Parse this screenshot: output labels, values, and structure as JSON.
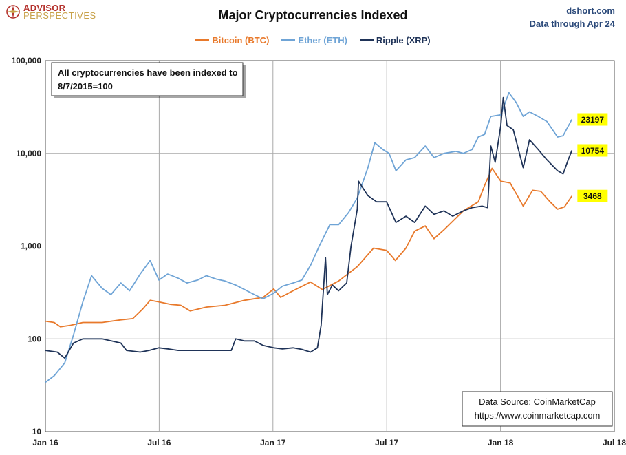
{
  "logo": {
    "line1": "ADVISOR",
    "line2": "PERSPECTIVES"
  },
  "header": {
    "site": "dshort.com",
    "data_through": "Data through Apr 24"
  },
  "colors": {
    "btc": "#e8792b",
    "eth": "#6fa4d6",
    "xrp": "#1f3358",
    "label_bg": "#ffff00",
    "grid": "#a9a9a9"
  },
  "chart_data": {
    "type": "line",
    "title": "Major Cryptocurrencies  Indexed",
    "yscale": "log",
    "ylim": [
      10,
      100000
    ],
    "y_ticks": [
      10,
      100,
      1000,
      10000,
      100000
    ],
    "y_tick_labels": [
      "10",
      "100",
      "1,000",
      "10,000",
      "100,000"
    ],
    "x_ticks": [
      "Jan 16",
      "Jul 16",
      "Jan 17",
      "Jul 17",
      "Jan 18",
      "Jul 18"
    ],
    "xlim": [
      "2016-01-01",
      "2018-07-01"
    ],
    "grid": true,
    "legend_position": "top-center",
    "annotation": "All cryptocurrencies have been indexed to 8/7/2015=100",
    "source_box": {
      "line1": "Data Source: CoinMarketCap",
      "line2": "https://www.coinmarketcap.com"
    },
    "series": [
      {
        "name": "Bitcoin (BTC)",
        "key": "btc",
        "end_label": "3468",
        "points": [
          [
            "2016-01-01",
            155
          ],
          [
            "2016-01-15",
            150
          ],
          [
            "2016-01-25",
            135
          ],
          [
            "2016-02-10",
            140
          ],
          [
            "2016-03-01",
            150
          ],
          [
            "2016-04-01",
            150
          ],
          [
            "2016-05-01",
            160
          ],
          [
            "2016-05-20",
            165
          ],
          [
            "2016-06-05",
            210
          ],
          [
            "2016-06-17",
            260
          ],
          [
            "2016-07-01",
            250
          ],
          [
            "2016-07-20",
            235
          ],
          [
            "2016-08-05",
            230
          ],
          [
            "2016-08-20",
            200
          ],
          [
            "2016-09-15",
            220
          ],
          [
            "2016-10-15",
            230
          ],
          [
            "2016-11-15",
            260
          ],
          [
            "2016-12-15",
            280
          ],
          [
            "2017-01-01",
            345
          ],
          [
            "2017-01-12",
            280
          ],
          [
            "2017-02-01",
            330
          ],
          [
            "2017-03-01",
            410
          ],
          [
            "2017-03-20",
            340
          ],
          [
            "2017-04-15",
            420
          ],
          [
            "2017-05-15",
            600
          ],
          [
            "2017-06-10",
            950
          ],
          [
            "2017-07-01",
            900
          ],
          [
            "2017-07-15",
            700
          ],
          [
            "2017-08-01",
            950
          ],
          [
            "2017-08-15",
            1450
          ],
          [
            "2017-09-01",
            1650
          ],
          [
            "2017-09-15",
            1200
          ],
          [
            "2017-10-01",
            1500
          ],
          [
            "2017-10-20",
            2000
          ],
          [
            "2017-11-01",
            2400
          ],
          [
            "2017-11-25",
            3000
          ],
          [
            "2017-12-05",
            4500
          ],
          [
            "2017-12-17",
            6900
          ],
          [
            "2017-12-31",
            5000
          ],
          [
            "2018-01-15",
            4800
          ],
          [
            "2018-02-05",
            2700
          ],
          [
            "2018-02-20",
            4000
          ],
          [
            "2018-03-05",
            3900
          ],
          [
            "2018-03-20",
            3000
          ],
          [
            "2018-04-01",
            2500
          ],
          [
            "2018-04-12",
            2650
          ],
          [
            "2018-04-24",
            3468
          ]
        ]
      },
      {
        "name": "Ether (ETH)",
        "key": "eth",
        "end_label": "23197",
        "points": [
          [
            "2016-01-01",
            34
          ],
          [
            "2016-01-15",
            40
          ],
          [
            "2016-02-01",
            55
          ],
          [
            "2016-02-15",
            110
          ],
          [
            "2016-03-01",
            250
          ],
          [
            "2016-03-15",
            480
          ],
          [
            "2016-04-01",
            350
          ],
          [
            "2016-04-15",
            300
          ],
          [
            "2016-05-01",
            400
          ],
          [
            "2016-05-15",
            330
          ],
          [
            "2016-06-01",
            500
          ],
          [
            "2016-06-17",
            700
          ],
          [
            "2016-07-01",
            430
          ],
          [
            "2016-07-15",
            500
          ],
          [
            "2016-08-01",
            450
          ],
          [
            "2016-08-15",
            400
          ],
          [
            "2016-09-01",
            430
          ],
          [
            "2016-09-15",
            480
          ],
          [
            "2016-10-01",
            440
          ],
          [
            "2016-10-15",
            420
          ],
          [
            "2016-11-01",
            380
          ],
          [
            "2016-11-15",
            340
          ],
          [
            "2016-12-01",
            300
          ],
          [
            "2016-12-15",
            270
          ],
          [
            "2017-01-01",
            310
          ],
          [
            "2017-01-15",
            370
          ],
          [
            "2017-02-01",
            400
          ],
          [
            "2017-02-15",
            430
          ],
          [
            "2017-03-01",
            620
          ],
          [
            "2017-03-15",
            1000
          ],
          [
            "2017-04-01",
            1700
          ],
          [
            "2017-04-15",
            1700
          ],
          [
            "2017-05-01",
            2300
          ],
          [
            "2017-05-15",
            3300
          ],
          [
            "2017-06-01",
            7000
          ],
          [
            "2017-06-12",
            13000
          ],
          [
            "2017-06-25",
            11000
          ],
          [
            "2017-07-05",
            10000
          ],
          [
            "2017-07-16",
            6500
          ],
          [
            "2017-08-01",
            8500
          ],
          [
            "2017-08-15",
            9000
          ],
          [
            "2017-09-01",
            12000
          ],
          [
            "2017-09-15",
            9000
          ],
          [
            "2017-10-01",
            10000
          ],
          [
            "2017-10-20",
            10500
          ],
          [
            "2017-11-01",
            10000
          ],
          [
            "2017-11-15",
            11000
          ],
          [
            "2017-11-25",
            15000
          ],
          [
            "2017-12-05",
            16000
          ],
          [
            "2017-12-15",
            25000
          ],
          [
            "2017-12-31",
            26000
          ],
          [
            "2018-01-13",
            45000
          ],
          [
            "2018-01-25",
            35000
          ],
          [
            "2018-02-05",
            25000
          ],
          [
            "2018-02-15",
            28000
          ],
          [
            "2018-03-01",
            25000
          ],
          [
            "2018-03-15",
            22000
          ],
          [
            "2018-04-01",
            15000
          ],
          [
            "2018-04-10",
            15500
          ],
          [
            "2018-04-24",
            23197
          ]
        ]
      },
      {
        "name": "Ripple (XRP)",
        "key": "xrp",
        "end_label": "10754",
        "points": [
          [
            "2016-01-01",
            75
          ],
          [
            "2016-01-20",
            72
          ],
          [
            "2016-02-01",
            62
          ],
          [
            "2016-02-15",
            90
          ],
          [
            "2016-03-01",
            100
          ],
          [
            "2016-04-01",
            100
          ],
          [
            "2016-05-01",
            90
          ],
          [
            "2016-05-10",
            75
          ],
          [
            "2016-06-01",
            72
          ],
          [
            "2016-06-15",
            75
          ],
          [
            "2016-07-01",
            80
          ],
          [
            "2016-07-15",
            78
          ],
          [
            "2016-08-01",
            75
          ],
          [
            "2016-09-01",
            75
          ],
          [
            "2016-10-01",
            75
          ],
          [
            "2016-10-25",
            75
          ],
          [
            "2016-11-01",
            100
          ],
          [
            "2016-11-15",
            95
          ],
          [
            "2016-12-01",
            95
          ],
          [
            "2016-12-15",
            85
          ],
          [
            "2017-01-01",
            80
          ],
          [
            "2017-01-15",
            78
          ],
          [
            "2017-02-01",
            80
          ],
          [
            "2017-02-15",
            77
          ],
          [
            "2017-03-01",
            72
          ],
          [
            "2017-03-12",
            80
          ],
          [
            "2017-03-18",
            140
          ],
          [
            "2017-03-25",
            750
          ],
          [
            "2017-03-28",
            300
          ],
          [
            "2017-04-05",
            380
          ],
          [
            "2017-04-15",
            330
          ],
          [
            "2017-04-28",
            400
          ],
          [
            "2017-05-05",
            1000
          ],
          [
            "2017-05-15",
            2500
          ],
          [
            "2017-05-17",
            5000
          ],
          [
            "2017-06-01",
            3500
          ],
          [
            "2017-06-15",
            3000
          ],
          [
            "2017-07-01",
            3000
          ],
          [
            "2017-07-16",
            1800
          ],
          [
            "2017-08-01",
            2100
          ],
          [
            "2017-08-15",
            1800
          ],
          [
            "2017-09-01",
            2700
          ],
          [
            "2017-09-15",
            2200
          ],
          [
            "2017-10-01",
            2400
          ],
          [
            "2017-10-15",
            2100
          ],
          [
            "2017-11-01",
            2400
          ],
          [
            "2017-11-15",
            2600
          ],
          [
            "2017-12-01",
            2700
          ],
          [
            "2017-12-10",
            2600
          ],
          [
            "2017-12-15",
            12000
          ],
          [
            "2017-12-22",
            8000
          ],
          [
            "2017-12-31",
            20000
          ],
          [
            "2018-01-04",
            40000
          ],
          [
            "2018-01-10",
            20000
          ],
          [
            "2018-01-20",
            18000
          ],
          [
            "2018-02-05",
            7000
          ],
          [
            "2018-02-15",
            14000
          ],
          [
            "2018-03-01",
            11000
          ],
          [
            "2018-03-15",
            8500
          ],
          [
            "2018-04-01",
            6500
          ],
          [
            "2018-04-10",
            6000
          ],
          [
            "2018-04-18",
            8500
          ],
          [
            "2018-04-24",
            10754
          ]
        ]
      }
    ]
  }
}
